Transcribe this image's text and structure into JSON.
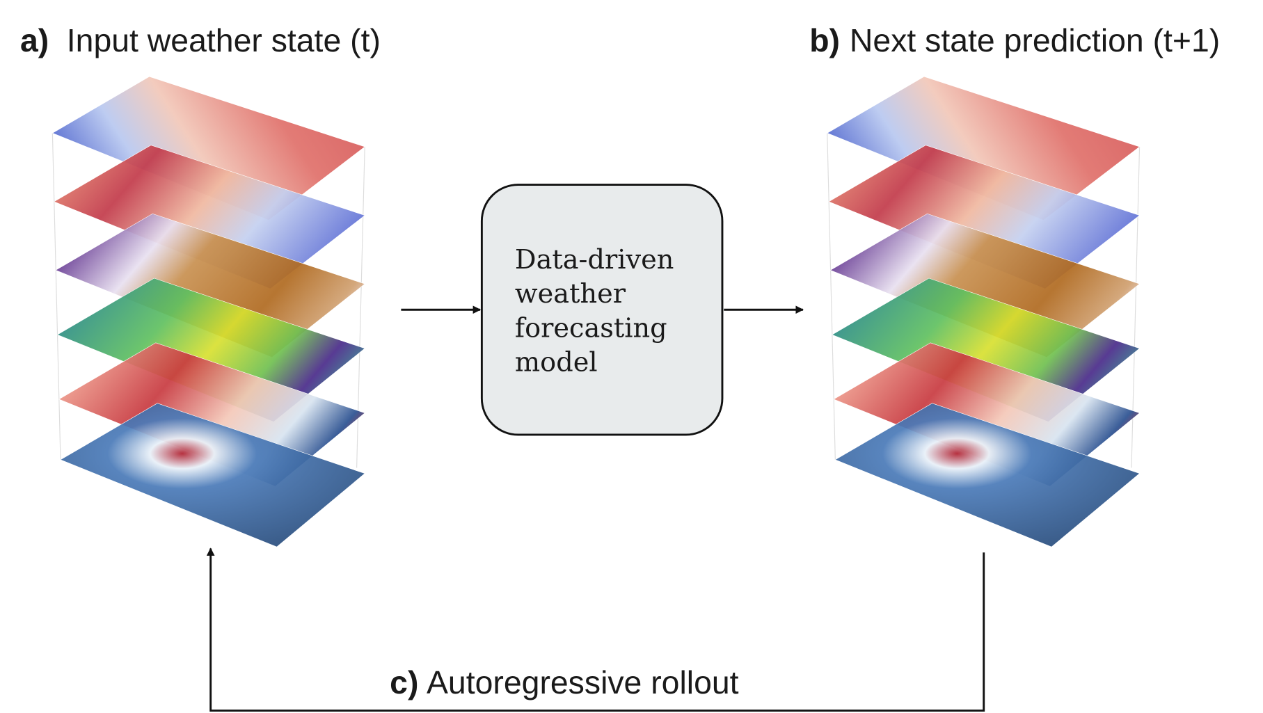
{
  "panels": [
    {
      "label": "a)",
      "title": "Input  weather state (t)"
    },
    {
      "label": "b)",
      "title": "Next state prediction (t+1)"
    },
    {
      "label": "c)",
      "title": "Autoregressive rollout"
    }
  ],
  "model": {
    "lines": [
      "Data-driven",
      "weather",
      "forecasting",
      "model"
    ]
  }
}
